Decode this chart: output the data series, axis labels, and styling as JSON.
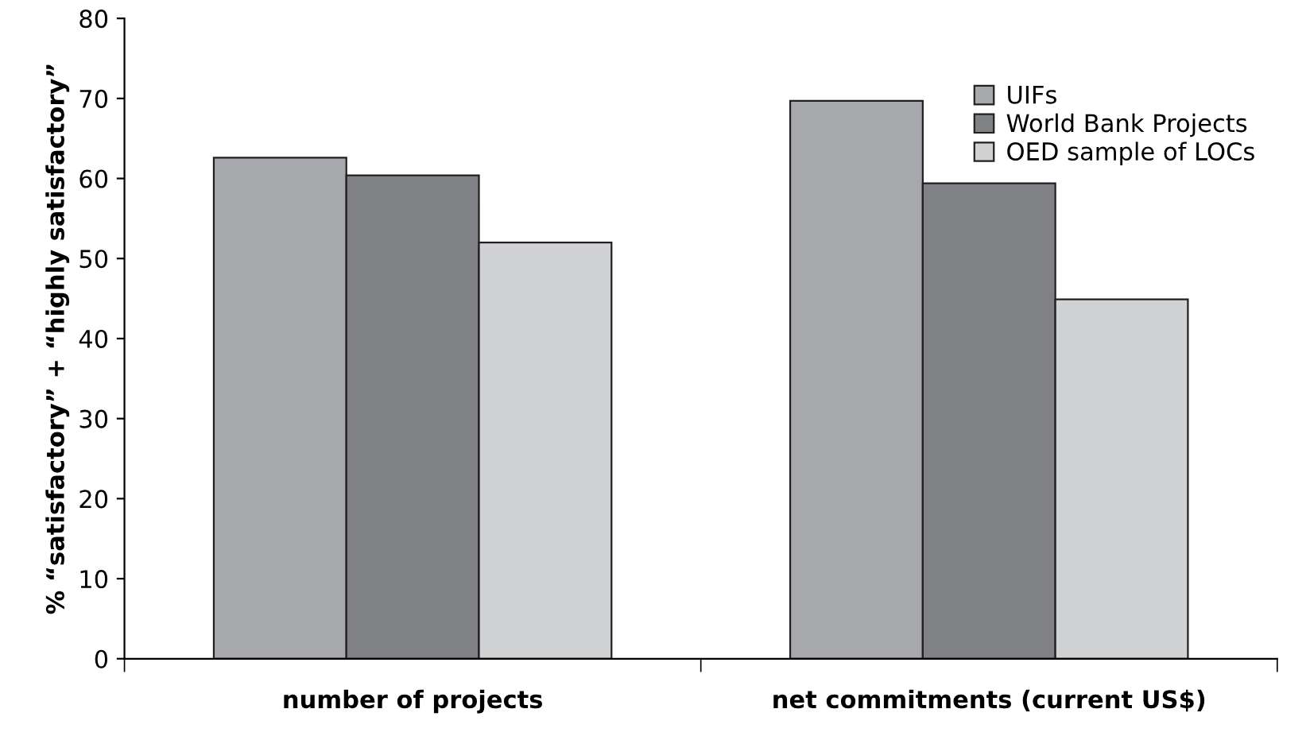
{
  "chart_data": {
    "type": "bar",
    "ylabel": "% “satisfactory” + “highly satisfactory”",
    "categories": [
      "number of projects",
      "net commitments (current US$)"
    ],
    "series": [
      {
        "name": "UIFs",
        "color": "#a7a8ab",
        "values": [
          62.6,
          69.7
        ]
      },
      {
        "name": "World Bank Projects",
        "color": "#808184",
        "values": [
          60.4,
          59.4
        ]
      },
      {
        "name": "OED sample of LOCs",
        "color": "#d1d2d4",
        "values": [
          52,
          44.9
        ]
      }
    ],
    "ylim": [
      0,
      80
    ],
    "yticks": [
      0,
      10,
      20,
      30,
      40,
      50,
      60,
      70,
      80
    ],
    "grid": false,
    "legend": "top right"
  }
}
